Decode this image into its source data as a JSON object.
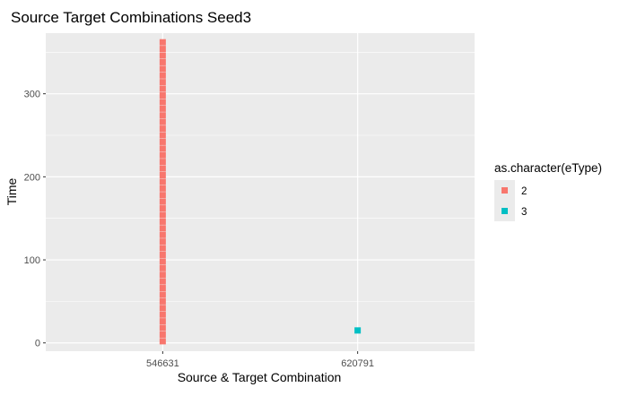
{
  "chart_data": {
    "type": "scatter",
    "title": "Source Target Combinations Seed3",
    "xlabel": "Source & Target Combination",
    "ylabel": "Time",
    "x_categories": [
      "546631",
      "620791"
    ],
    "ylim": [
      -10,
      373
    ],
    "y_ticks": [
      0,
      100,
      200,
      300
    ],
    "grid": true,
    "legend": {
      "title": "as.character(eType)",
      "position": "right",
      "entries": [
        {
          "label": "2",
          "color": "#F8766D"
        },
        {
          "label": "3",
          "color": "#00BFC4"
        }
      ]
    },
    "series": [
      {
        "name": "2",
        "color": "#F8766D",
        "points": [
          {
            "x": "546631",
            "y": 2
          },
          {
            "x": "546631",
            "y": 10
          },
          {
            "x": "546631",
            "y": 18
          },
          {
            "x": "546631",
            "y": 26
          },
          {
            "x": "546631",
            "y": 34
          },
          {
            "x": "546631",
            "y": 42
          },
          {
            "x": "546631",
            "y": 50
          },
          {
            "x": "546631",
            "y": 58
          },
          {
            "x": "546631",
            "y": 66
          },
          {
            "x": "546631",
            "y": 74
          },
          {
            "x": "546631",
            "y": 82
          },
          {
            "x": "546631",
            "y": 90
          },
          {
            "x": "546631",
            "y": 98
          },
          {
            "x": "546631",
            "y": 106
          },
          {
            "x": "546631",
            "y": 114
          },
          {
            "x": "546631",
            "y": 122
          },
          {
            "x": "546631",
            "y": 130
          },
          {
            "x": "546631",
            "y": 138
          },
          {
            "x": "546631",
            "y": 146
          },
          {
            "x": "546631",
            "y": 154
          },
          {
            "x": "546631",
            "y": 162
          },
          {
            "x": "546631",
            "y": 170
          },
          {
            "x": "546631",
            "y": 178
          },
          {
            "x": "546631",
            "y": 186
          },
          {
            "x": "546631",
            "y": 194
          },
          {
            "x": "546631",
            "y": 202
          },
          {
            "x": "546631",
            "y": 210
          },
          {
            "x": "546631",
            "y": 218
          },
          {
            "x": "546631",
            "y": 226
          },
          {
            "x": "546631",
            "y": 234
          },
          {
            "x": "546631",
            "y": 242
          },
          {
            "x": "546631",
            "y": 250
          },
          {
            "x": "546631",
            "y": 258
          },
          {
            "x": "546631",
            "y": 266
          },
          {
            "x": "546631",
            "y": 274
          },
          {
            "x": "546631",
            "y": 282
          },
          {
            "x": "546631",
            "y": 290
          },
          {
            "x": "546631",
            "y": 298
          },
          {
            "x": "546631",
            "y": 306
          },
          {
            "x": "546631",
            "y": 314
          },
          {
            "x": "546631",
            "y": 322
          },
          {
            "x": "546631",
            "y": 330
          },
          {
            "x": "546631",
            "y": 338
          },
          {
            "x": "546631",
            "y": 346
          },
          {
            "x": "546631",
            "y": 354
          },
          {
            "x": "546631",
            "y": 362
          }
        ]
      },
      {
        "name": "3",
        "color": "#00BFC4",
        "points": [
          {
            "x": "620791",
            "y": 15
          }
        ]
      }
    ]
  }
}
